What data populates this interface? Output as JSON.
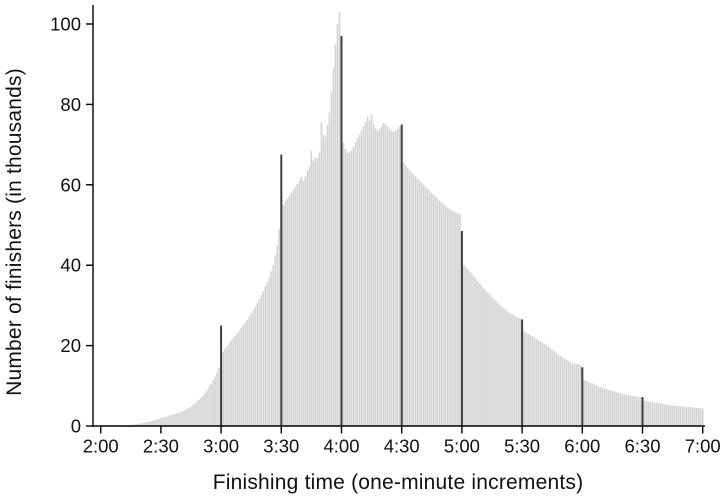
{
  "chart_data": {
    "type": "bar",
    "title": "",
    "xlabel": "Finishing time (one-minute increments)",
    "ylabel": "Number of finishers (in thousands)",
    "x_start": "2:00",
    "x_end": "7:00",
    "bin_minutes": 1,
    "x_tick_labels": [
      "2:00",
      "2:30",
      "3:00",
      "3:30",
      "4:00",
      "4:30",
      "5:00",
      "5:30",
      "6:00",
      "6:30",
      "7:00"
    ],
    "x_tick_indices": [
      0,
      30,
      60,
      90,
      120,
      150,
      180,
      210,
      240,
      270,
      300
    ],
    "y_ticks": [
      0,
      20,
      40,
      60,
      80,
      100
    ],
    "ylim": [
      0,
      105
    ],
    "grid": "off",
    "legend": "none",
    "bar_color": "#d3d3d3",
    "spike_color": "#3f3f3f",
    "axis_color": "#000000",
    "text_color": "#111111",
    "spike_indices": [
      60,
      90,
      120,
      150,
      180,
      210,
      240,
      270
    ],
    "spike_times": [
      "3:00",
      "3:30",
      "4:00",
      "4:30",
      "5:00",
      "5:30",
      "6:00",
      "6:30"
    ],
    "values": [
      0,
      0,
      0,
      0,
      0,
      0,
      0,
      0,
      0,
      0,
      0.1,
      0.1,
      0.15,
      0.2,
      0.25,
      0.3,
      0.35,
      0.4,
      0.5,
      0.6,
      0.7,
      0.8,
      0.9,
      1.0,
      1.1,
      1.2,
      1.35,
      1.5,
      1.65,
      1.8,
      2.0,
      2.1,
      2.25,
      2.4,
      2.55,
      2.7,
      2.85,
      3.0,
      3.15,
      3.3,
      3.5,
      3.7,
      3.9,
      4.2,
      4.5,
      4.8,
      5.2,
      5.6,
      6.0,
      6.5,
      7.0,
      7.6,
      8.2,
      8.9,
      9.7,
      10.5,
      11.4,
      12.3,
      13.3,
      14.5,
      25.0,
      18.5,
      19.2,
      19.9,
      20.6,
      21.2,
      21.8,
      22.4,
      23.0,
      23.6,
      24.3,
      25.0,
      25.7,
      26.4,
      27.2,
      28.0,
      28.8,
      29.7,
      30.6,
      31.5,
      32.5,
      33.5,
      34.6,
      35.8,
      37.0,
      38.5,
      40.0,
      42.5,
      45.0,
      49.0,
      67.5,
      55.0,
      55.8,
      56.5,
      57.2,
      58.0,
      58.8,
      59.5,
      60.2,
      61.0,
      62.0,
      61.0,
      62.0,
      63.5,
      64.5,
      68.5,
      66.0,
      67.0,
      66.5,
      68.0,
      75.5,
      72.5,
      72.0,
      75.0,
      78.0,
      83.0,
      89.0,
      95.0,
      100.0,
      103.0,
      97.0,
      70.5,
      69.0,
      68.0,
      68.0,
      68.5,
      69.5,
      70.5,
      71.5,
      72.5,
      73.5,
      74.5,
      75.5,
      77.0,
      76.0,
      77.4,
      75.0,
      74.0,
      73.5,
      74.0,
      74.5,
      75.4,
      75.0,
      74.5,
      74.0,
      73.5,
      73.2,
      73.5,
      74.0,
      74.5,
      75.0,
      65.5,
      64.8,
      64.2,
      63.6,
      63.0,
      62.5,
      62.0,
      61.5,
      61.0,
      60.5,
      60.0,
      59.5,
      59.0,
      58.5,
      58.0,
      57.5,
      57.0,
      56.5,
      56.0,
      55.5,
      55.0,
      54.6,
      54.2,
      53.9,
      53.6,
      53.3,
      53.1,
      52.9,
      52.7,
      48.5,
      40.0,
      39.5,
      39.0,
      38.4,
      37.8,
      37.2,
      36.6,
      36.0,
      35.4,
      34.8,
      34.2,
      33.6,
      33.1,
      32.6,
      32.1,
      31.6,
      31.1,
      30.6,
      30.1,
      29.7,
      29.3,
      28.9,
      28.5,
      28.1,
      27.8,
      27.5,
      27.2,
      27.0,
      26.8,
      26.5,
      23.5,
      23.2,
      22.9,
      22.6,
      22.3,
      22.0,
      21.7,
      21.4,
      21.1,
      20.8,
      20.5,
      20.2,
      19.9,
      19.5,
      19.1,
      18.7,
      18.3,
      17.9,
      17.5,
      17.1,
      16.8,
      16.5,
      16.2,
      15.9,
      15.7,
      15.5,
      15.4,
      15.3,
      15.2,
      14.6,
      11.4,
      11.2,
      11.0,
      10.8,
      10.6,
      10.3,
      10.1,
      9.9,
      9.7,
      9.5,
      9.3,
      9.2,
      9.0,
      8.9,
      8.7,
      8.6,
      8.4,
      8.3,
      8.1,
      8.0,
      7.9,
      7.8,
      7.7,
      7.6,
      7.5,
      7.4,
      7.3,
      7.2,
      7.1,
      7.2,
      6.3,
      6.2,
      6.1,
      6.0,
      5.9,
      5.85,
      5.8,
      5.7,
      5.6,
      5.5,
      5.4,
      5.35,
      5.3,
      5.2,
      5.1,
      5.05,
      5.0,
      4.95,
      4.9,
      4.85,
      4.8,
      4.75,
      4.7,
      4.65,
      4.6,
      4.55,
      4.5,
      4.45,
      4.4,
      4.35
    ]
  }
}
